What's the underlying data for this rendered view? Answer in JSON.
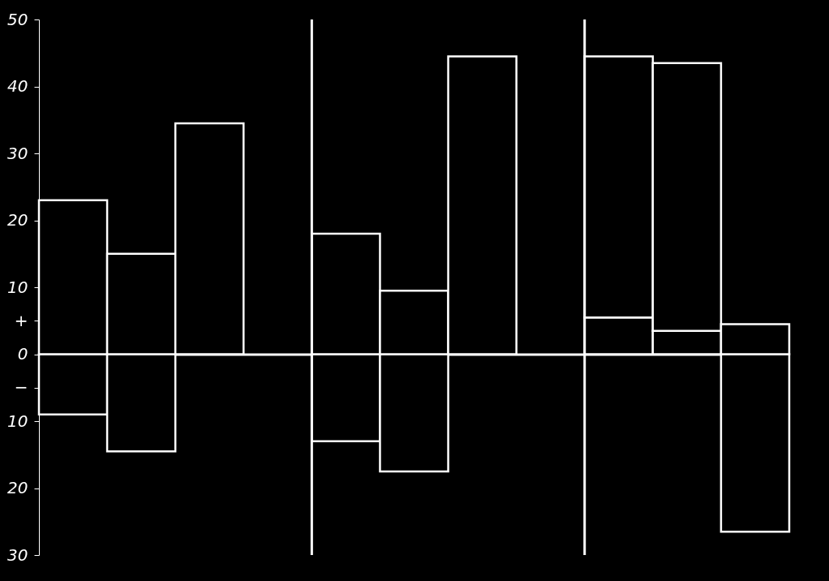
{
  "chart_data": {
    "type": "bar",
    "categories": [
      null,
      null,
      null,
      null,
      null,
      null,
      null,
      null,
      null,
      null,
      null
    ],
    "ylim": [
      -30,
      50
    ],
    "yticks": [
      50,
      40,
      30,
      20,
      10,
      {
        "value": 5,
        "label": "+"
      },
      0,
      {
        "value": -5,
        "label": "−"
      },
      {
        "value": -10,
        "label": "10"
      },
      {
        "value": -20,
        "label": "20"
      },
      {
        "value": -30,
        "label": "30"
      }
    ],
    "tick_labels": "y",
    "stacked": true,
    "series": [
      {
        "color": "#ffffff",
        "values": [
          -9,
          -14.5,
          null,
          null,
          -13,
          -17.5,
          null,
          null,
          5.5,
          3.5,
          -26.5
        ]
      },
      {
        "color": "#ffffff",
        "values": [
          23,
          15,
          34.5,
          null,
          18,
          9.5,
          44.5,
          null,
          39,
          40,
          4.5
        ]
      }
    ]
  }
}
